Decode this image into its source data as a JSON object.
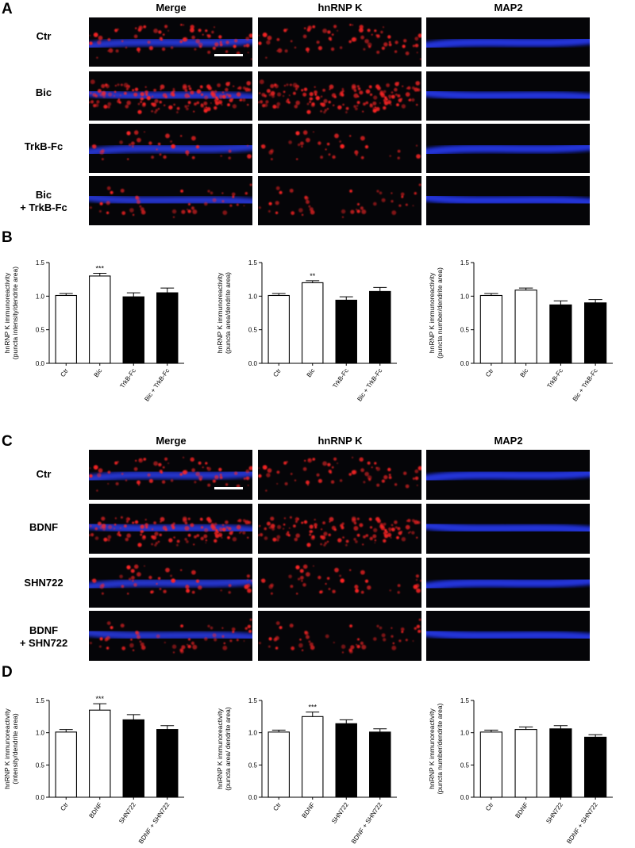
{
  "section_labels": {
    "A": "A",
    "B": "B",
    "C": "C",
    "D": "D"
  },
  "panel_A": {
    "column_headers": [
      "Merge",
      "hnRNP K",
      "MAP2"
    ],
    "row_labels": [
      [
        "Ctr"
      ],
      [
        "Bic"
      ],
      [
        "TrkB-Fc"
      ],
      [
        "Bic",
        "+ TrkB-Fc"
      ]
    ]
  },
  "panel_C": {
    "column_headers": [
      "Merge",
      "hnRNP K",
      "MAP2"
    ],
    "row_labels": [
      [
        "Ctr"
      ],
      [
        "BDNF"
      ],
      [
        "SHN722"
      ],
      [
        "BDNF",
        "+ SHN722"
      ]
    ]
  },
  "colors": {
    "open_bar": "#ffffff",
    "filled_bar": "#000000",
    "map2_blue": "#2a3cf0",
    "hnrnp_red": "#ff2020"
  },
  "chart_data": [
    {
      "type": "bar",
      "ylabel": [
        "hnRNP K immunoreactivity",
        "(puncta intensity/dendrite area)"
      ],
      "categories": [
        "Ctr",
        "Bic",
        "TrkB-Fc",
        "Bic + TrkB-Fc"
      ],
      "values": [
        1.01,
        1.3,
        0.99,
        1.05
      ],
      "errors": [
        0.03,
        0.04,
        0.06,
        0.07
      ],
      "fill": [
        "open",
        "open",
        "filled",
        "filled"
      ],
      "significance": [
        "",
        "***",
        "",
        ""
      ],
      "yticks": [
        "0.0",
        "0.5",
        "1.0",
        "1.5"
      ],
      "ylim": [
        0,
        1.5
      ]
    },
    {
      "type": "bar",
      "ylabel": [
        "hnRNP K immunoreactivity",
        "(puncta area/dendrite area)"
      ],
      "categories": [
        "Ctr",
        "Bic",
        "TrkB-Fc",
        "Bic + TrkB-Fc"
      ],
      "values": [
        1.01,
        1.2,
        0.94,
        1.07
      ],
      "errors": [
        0.03,
        0.03,
        0.05,
        0.06
      ],
      "fill": [
        "open",
        "open",
        "filled",
        "filled"
      ],
      "significance": [
        "",
        "**",
        "",
        ""
      ],
      "yticks": [
        "0.0",
        "0.5",
        "1.0",
        "1.5"
      ],
      "ylim": [
        0,
        1.5
      ]
    },
    {
      "type": "bar",
      "ylabel": [
        "hnRNP K immunoreactivity",
        "(puncta number/dendrite area)"
      ],
      "categories": [
        "Ctr",
        "Bic",
        "TrkB-Fc",
        "Bic + TrkB-Fc"
      ],
      "values": [
        1.01,
        1.09,
        0.87,
        0.9
      ],
      "errors": [
        0.03,
        0.03,
        0.06,
        0.05
      ],
      "fill": [
        "open",
        "open",
        "filled",
        "filled"
      ],
      "significance": [
        "",
        "",
        "",
        ""
      ],
      "yticks": [
        "0.0",
        "0.5",
        "1.0",
        "1.5"
      ],
      "ylim": [
        0,
        1.5
      ]
    },
    {
      "type": "bar",
      "ylabel": [
        "hnRNP K immunoreactivity",
        "(intensity/dendrite area)"
      ],
      "categories": [
        "Ctr",
        "BDNF",
        "SHN722",
        "BDNF + SHN722"
      ],
      "values": [
        1.01,
        1.35,
        1.2,
        1.05
      ],
      "errors": [
        0.04,
        0.1,
        0.08,
        0.06
      ],
      "fill": [
        "open",
        "open",
        "filled",
        "filled"
      ],
      "significance": [
        "",
        "***",
        "",
        ""
      ],
      "yticks": [
        "0.0",
        "0.5",
        "1.0",
        "1.5"
      ],
      "ylim": [
        0,
        1.5
      ]
    },
    {
      "type": "bar",
      "ylabel": [
        "hnRNP K immunoreactivity",
        "(puncta area/ dendrite area)"
      ],
      "categories": [
        "Ctr",
        "BDNF",
        "SHN722",
        "BDNF + SHN722"
      ],
      "values": [
        1.01,
        1.25,
        1.14,
        1.01
      ],
      "errors": [
        0.03,
        0.07,
        0.06,
        0.05
      ],
      "fill": [
        "open",
        "open",
        "filled",
        "filled"
      ],
      "significance": [
        "",
        "***",
        "",
        ""
      ],
      "yticks": [
        "0.0",
        "0.5",
        "1.0",
        "1.5"
      ],
      "ylim": [
        0,
        1.5
      ]
    },
    {
      "type": "bar",
      "ylabel": [
        "hnRNP K immunoreactivity",
        "(puncta number/dendrite area)"
      ],
      "categories": [
        "Ctr",
        "BDNF",
        "SHN722",
        "BDNF + SHN722"
      ],
      "values": [
        1.01,
        1.05,
        1.06,
        0.93
      ],
      "errors": [
        0.03,
        0.04,
        0.05,
        0.04
      ],
      "fill": [
        "open",
        "open",
        "filled",
        "filled"
      ],
      "significance": [
        "",
        "",
        "",
        ""
      ],
      "yticks": [
        "0.0",
        "0.5",
        "1.0",
        "1.5"
      ],
      "ylim": [
        0,
        1.5
      ]
    }
  ]
}
